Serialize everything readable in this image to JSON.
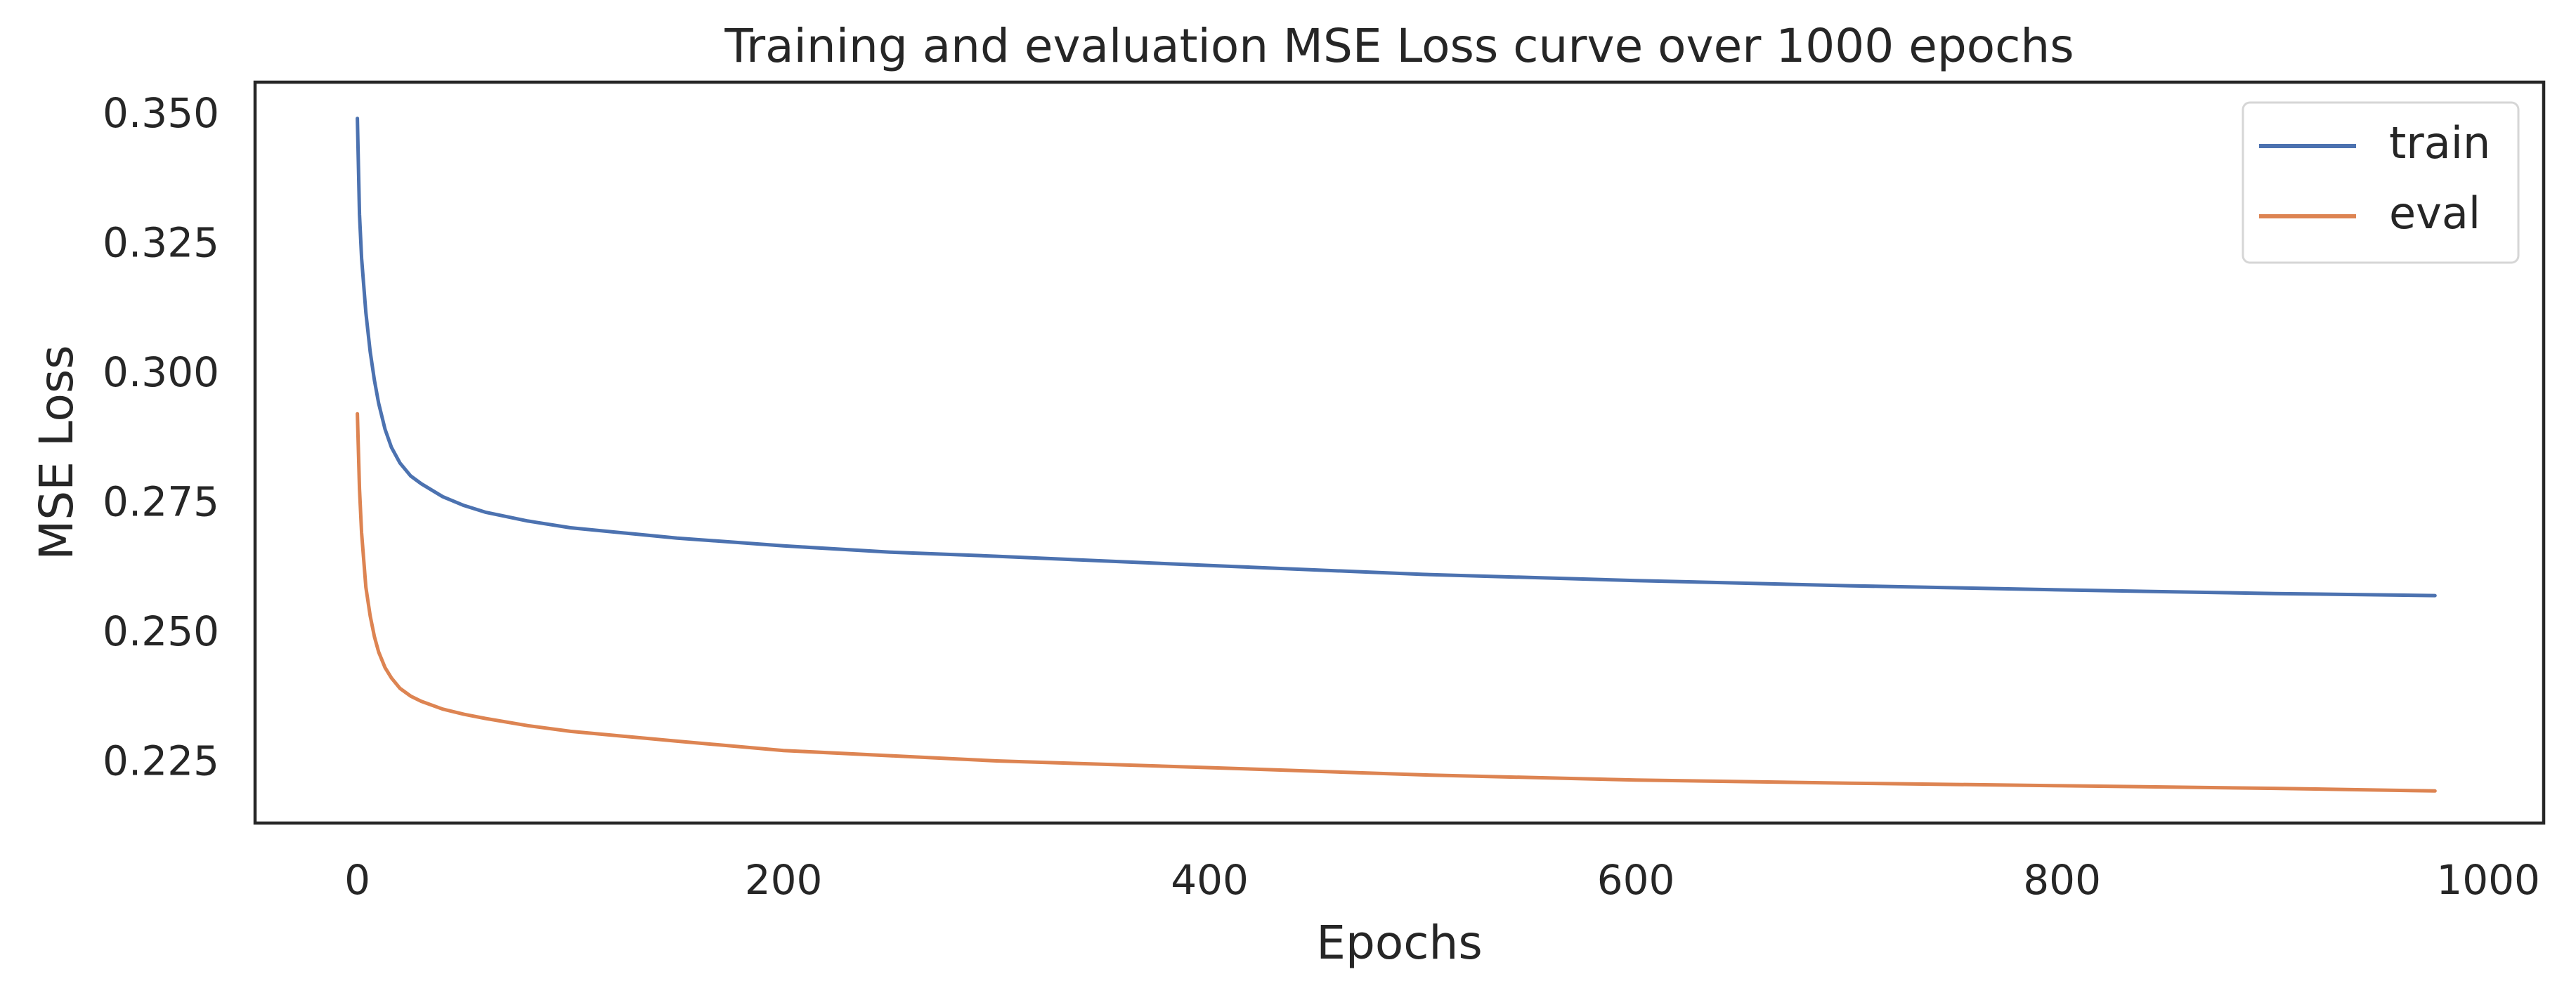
{
  "chart_data": {
    "type": "line",
    "title": "Training and evaluation MSE Loss curve over 1000 epochs",
    "xlabel": "Epochs",
    "ylabel": "MSE Loss",
    "xlim": [
      -48,
      1026
    ],
    "ylim": [
      0.2135,
      0.3565
    ],
    "xticks": [
      0,
      200,
      400,
      600,
      800,
      1000
    ],
    "xtick_labels": [
      "0",
      "200",
      "400",
      "600",
      "800",
      "1000"
    ],
    "yticks": [
      0.225,
      0.25,
      0.275,
      0.3,
      0.325,
      0.35
    ],
    "ytick_labels": [
      "0.225",
      "0.250",
      "0.275",
      "0.300",
      "0.325",
      "0.350"
    ],
    "grid": false,
    "legend_position": "top-right",
    "series": [
      {
        "name": "train",
        "color": "#4c72b0",
        "x": [
          0,
          1,
          2,
          4,
          6,
          8,
          10,
          13,
          16,
          20,
          25,
          30,
          40,
          50,
          60,
          80,
          100,
          150,
          200,
          250,
          300,
          400,
          500,
          600,
          700,
          800,
          900,
          975
        ],
        "y": [
          0.3495,
          0.331,
          0.3225,
          0.312,
          0.3045,
          0.299,
          0.2945,
          0.2895,
          0.286,
          0.283,
          0.2805,
          0.279,
          0.2765,
          0.2748,
          0.2735,
          0.2718,
          0.2705,
          0.2685,
          0.267,
          0.2658,
          0.265,
          0.2632,
          0.2615,
          0.2603,
          0.2593,
          0.2585,
          0.2578,
          0.2574
        ]
      },
      {
        "name": "eval",
        "color": "#dd8452",
        "x": [
          0,
          1,
          2,
          4,
          6,
          8,
          10,
          13,
          16,
          20,
          25,
          30,
          40,
          50,
          60,
          80,
          100,
          150,
          200,
          250,
          300,
          400,
          500,
          600,
          700,
          800,
          900,
          975
        ],
        "y": [
          0.2925,
          0.278,
          0.2695,
          0.259,
          0.2535,
          0.2495,
          0.2465,
          0.2435,
          0.2415,
          0.2395,
          0.238,
          0.237,
          0.2355,
          0.2345,
          0.2337,
          0.2323,
          0.2312,
          0.2293,
          0.2275,
          0.2265,
          0.2255,
          0.2242,
          0.2228,
          0.2218,
          0.2212,
          0.2207,
          0.2202,
          0.2197
        ]
      }
    ]
  }
}
